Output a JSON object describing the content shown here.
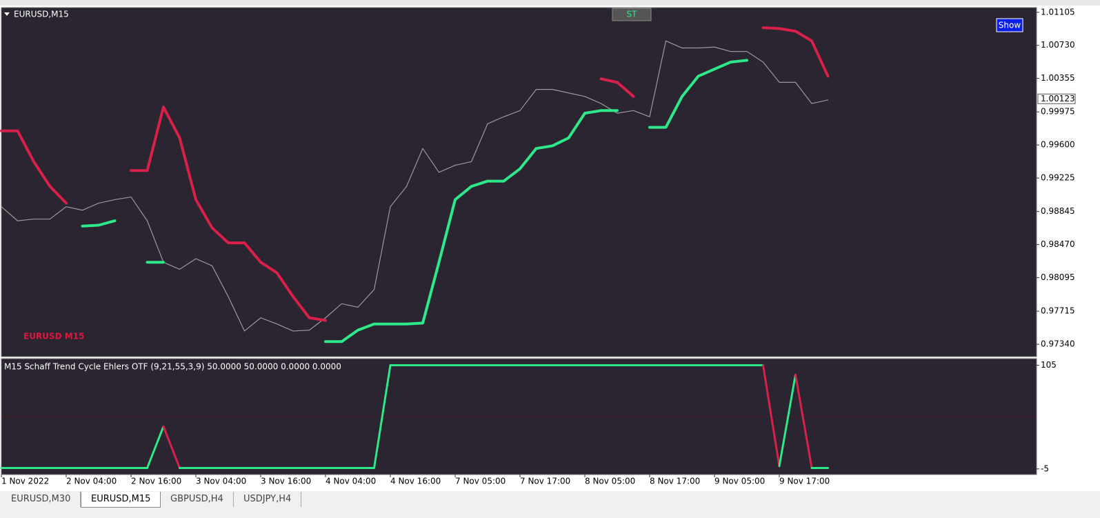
{
  "toolbar": {
    "symbol": "EURUSD,M15",
    "st_button": "ST",
    "show_button": "Show"
  },
  "watermark": "EURUSD M15",
  "tabs": [
    "EURUSD,M30",
    "EURUSD,M15",
    "GBPUSD,H4",
    "USDJPY,H4"
  ],
  "chart_data": [
    {
      "type": "line",
      "ylim": [
        0.972,
        1.0115
      ],
      "yticks": [
        1.01105,
        {
          "value": 1.0073,
          "label": "1.00730"
        },
        1.00355,
        0.99975,
        {
          "value": 0.996,
          "label": "0.99600"
        },
        0.99225,
        0.98845,
        {
          "value": 0.9847,
          "label": "0.98470"
        },
        0.98095,
        0.97715,
        {
          "value": 0.9734,
          "label": "0.97340"
        }
      ],
      "current_price": 1.00123,
      "series": [
        {
          "color": "#9a9a9a",
          "values": [
            0.989,
            0.9874,
            0.9876,
            0.9876,
            0.989,
            0.9886,
            0.9894,
            0.9898,
            0.9901,
            0.9874,
            0.9827,
            0.9819,
            0.9831,
            0.9823,
            0.9788,
            0.9749,
            0.9764,
            0.9757,
            0.9749,
            0.975,
            0.9764,
            0.978,
            0.9776,
            0.9796,
            0.989,
            0.9913,
            0.9956,
            0.9929,
            0.9937,
            0.9941,
            0.9984,
            0.9992,
            0.9999,
            1.0023,
            1.0023,
            1.0019,
            1.0015,
            1.0007,
            0.9996,
            0.9999,
            0.9992,
            1.0078,
            1.007,
            1.007,
            1.0071,
            1.0066,
            1.0066,
            1.0054,
            1.0031,
            1.0031,
            1.0007,
            1.0011
          ]
        },
        {
          "color": "#d8204a",
          "values": [
            0.9976,
            0.9976,
            0.9941,
            0.9913,
            0.9894,
            null,
            null,
            null,
            0.9931,
            0.9931,
            1.0003,
            0.9968,
            0.9898,
            0.9866,
            0.9849,
            0.9849,
            0.9827,
            0.9815,
            0.9788,
            0.9764,
            0.9761,
            null,
            null,
            null,
            null,
            null,
            null,
            null,
            null,
            null,
            null,
            null,
            null,
            null,
            null,
            null,
            null,
            1.0035,
            1.0031,
            1.0015,
            null,
            null,
            null,
            null,
            null,
            null,
            null,
            1.0093,
            1.0092,
            1.0089,
            1.0078,
            1.0038
          ]
        },
        {
          "color": "#2ee88a",
          "values": [
            null,
            null,
            null,
            null,
            null,
            0.9868,
            0.9869,
            0.9874,
            null,
            0.9827,
            0.9827,
            null,
            null,
            null,
            null,
            null,
            null,
            null,
            null,
            null,
            0.9737,
            0.9737,
            0.975,
            0.9757,
            0.9757,
            0.9757,
            0.9758,
            0.9827,
            0.9898,
            0.9913,
            0.9919,
            0.9919,
            0.9933,
            0.9956,
            0.9959,
            0.9968,
            0.9996,
            0.9999,
            0.9999,
            null,
            0.998,
            0.998,
            1.0015,
            1.0038,
            1.0046,
            1.0054,
            1.0056,
            null,
            null,
            null,
            null,
            null
          ]
        }
      ]
    },
    {
      "type": "line",
      "title": "M15 Schaff Trend Cycle Ehlers OTF  (9,21,55,3,9) 50.0000 50.0000 0.0000 0.0000",
      "ylim": [
        -11,
        112
      ],
      "yticks": [
        105,
        -5
      ],
      "levels": [
        50
      ],
      "rising_color": "#2ee88a",
      "falling_color": "#d8204a",
      "categories": [
        "1 Nov 2022",
        null,
        null,
        null,
        "2 Nov 04:00",
        null,
        null,
        null,
        "2 Nov 16:00",
        null,
        null,
        null,
        "3 Nov 04:00",
        null,
        null,
        null,
        "3 Nov 16:00",
        null,
        null,
        null,
        "4 Nov 04:00",
        null,
        null,
        null,
        "4 Nov 16:00",
        null,
        null,
        null,
        "7 Nov 05:00",
        null,
        null,
        null,
        "7 Nov 17:00",
        null,
        null,
        null,
        "8 Nov 05:00",
        null,
        null,
        null,
        "8 Nov 17:00",
        null,
        null,
        null,
        "9 Nov 05:00",
        null,
        null,
        null,
        "9 Nov 17:00",
        null,
        null,
        null
      ],
      "values": [
        -4,
        -4,
        -4,
        -4,
        -4,
        -4,
        -4,
        -4,
        -4,
        -4,
        40,
        -4,
        -4,
        -4,
        -4,
        -4,
        -4,
        -4,
        -4,
        -4,
        -4,
        -4,
        -4,
        -4,
        105,
        105,
        105,
        105,
        105,
        105,
        105,
        105,
        105,
        105,
        105,
        105,
        105,
        105,
        105,
        105,
        105,
        105,
        105,
        105,
        105,
        105,
        105,
        105,
        -2,
        95,
        -4,
        -4
      ]
    }
  ]
}
